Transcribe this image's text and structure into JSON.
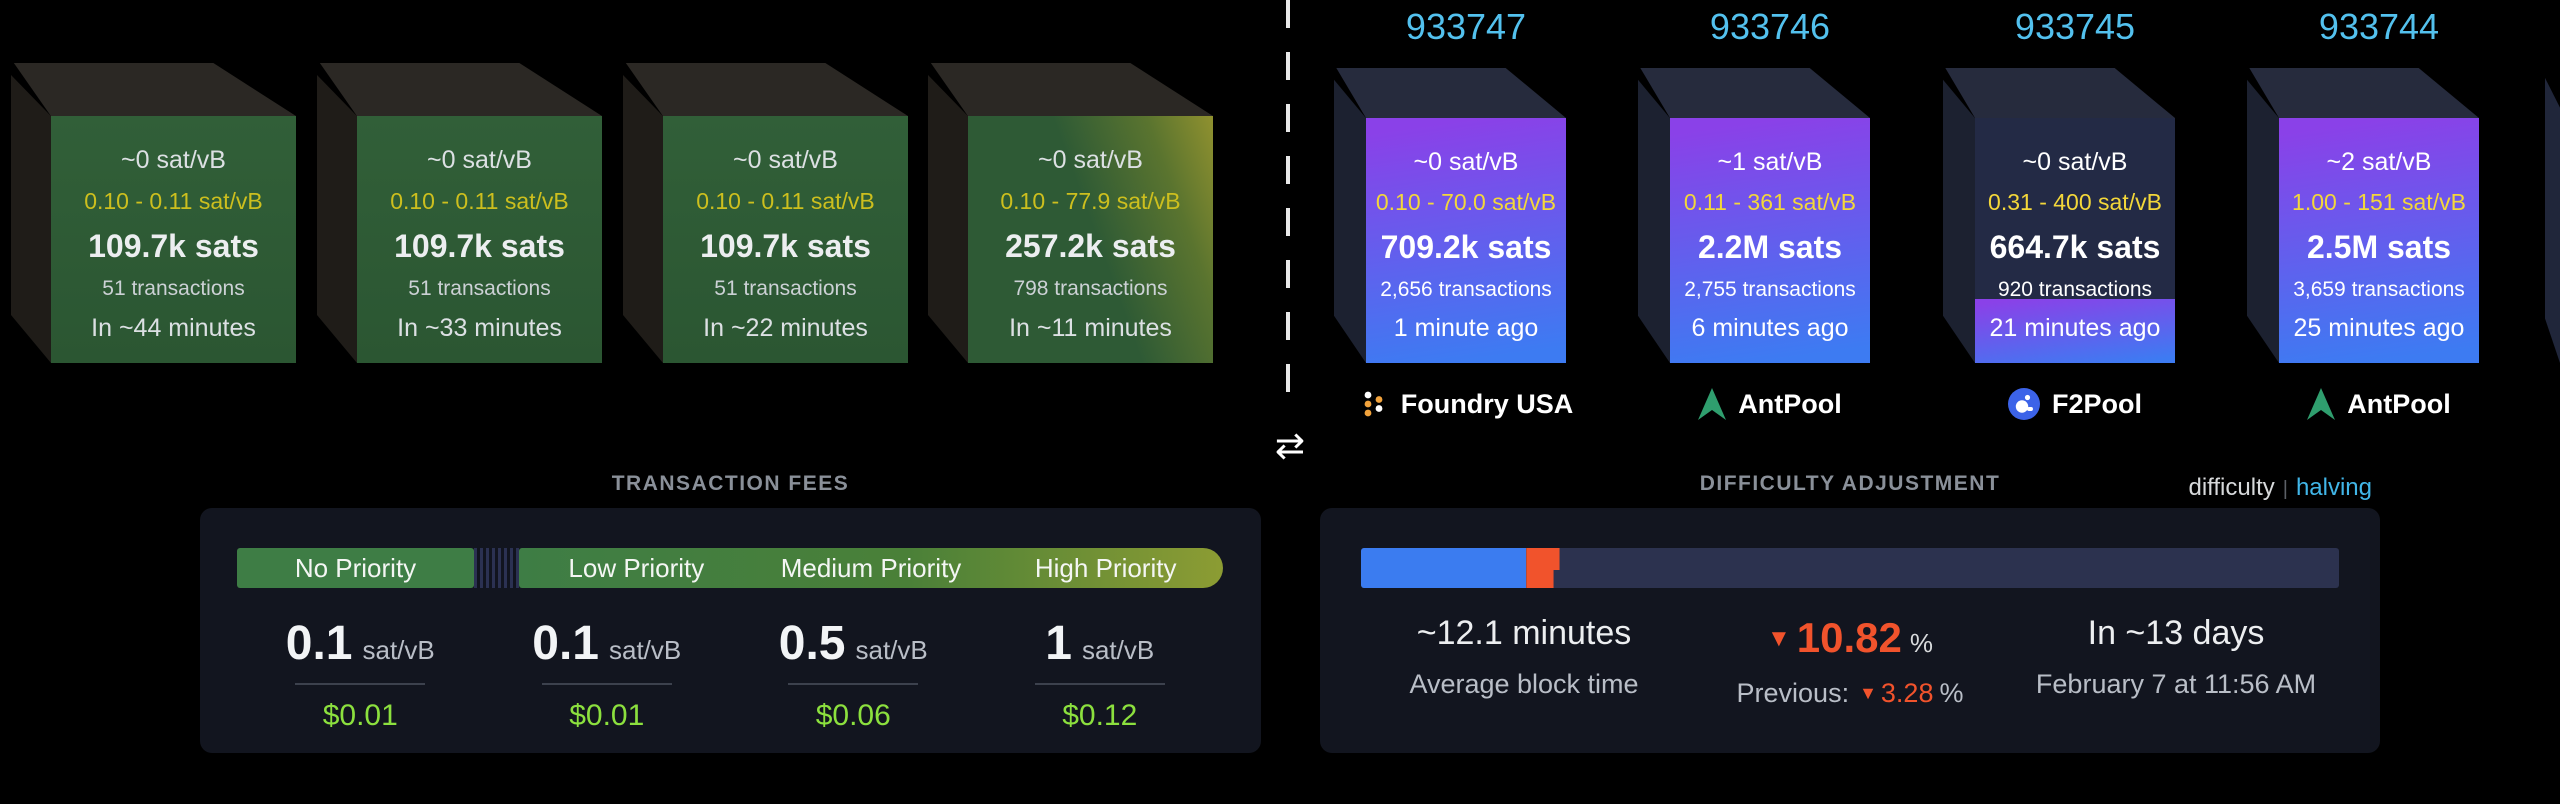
{
  "mempool_side": {
    "blocks": [
      {
        "median_fee": "~0 sat/vB",
        "fee_range": "0.10 - 0.11 sat/vB",
        "total_fees": "109.7k sats",
        "transactions": "51 transactions",
        "eta": "In ~44 minutes"
      },
      {
        "median_fee": "~0 sat/vB",
        "fee_range": "0.10 - 0.11 sat/vB",
        "total_fees": "109.7k sats",
        "transactions": "51 transactions",
        "eta": "In ~33 minutes"
      },
      {
        "median_fee": "~0 sat/vB",
        "fee_range": "0.10 - 0.11 sat/vB",
        "total_fees": "109.7k sats",
        "transactions": "51 transactions",
        "eta": "In ~22 minutes"
      },
      {
        "median_fee": "~0 sat/vB",
        "fee_range": "0.10 - 77.9 sat/vB",
        "total_fees": "257.2k sats",
        "transactions": "798 transactions",
        "eta": "In ~11 minutes"
      }
    ]
  },
  "blockchain_side": {
    "blocks": [
      {
        "height": "933747",
        "median_fee": "~0 sat/vB",
        "fee_range": "0.10 - 70.0 sat/vB",
        "total_fees": "709.2k sats",
        "transactions": "2,656 transactions",
        "age": "1 minute ago",
        "pool": "Foundry USA",
        "pool_icon": "foundry-icon",
        "fill_percent": 100
      },
      {
        "height": "933746",
        "median_fee": "~1 sat/vB",
        "fee_range": "0.11 - 361 sat/vB",
        "total_fees": "2.2M sats",
        "transactions": "2,755 transactions",
        "age": "6 minutes ago",
        "pool": "AntPool",
        "pool_icon": "antpool-icon",
        "fill_percent": 100
      },
      {
        "height": "933745",
        "median_fee": "~0 sat/vB",
        "fee_range": "0.31 - 400 sat/vB",
        "total_fees": "664.7k sats",
        "transactions": "920 transactions",
        "age": "21 minutes ago",
        "pool": "F2Pool",
        "pool_icon": "f2pool-icon",
        "fill_percent": 26
      },
      {
        "height": "933744",
        "median_fee": "~2 sat/vB",
        "fee_range": "1.00 - 151 sat/vB",
        "total_fees": "2.5M sats",
        "transactions": "3,659 transactions",
        "age": "25 minutes ago",
        "pool": "AntPool",
        "pool_icon": "antpool-icon",
        "fill_percent": 100
      }
    ]
  },
  "divider": {
    "swap_icon": "⇄"
  },
  "fees_panel": {
    "title": "TRANSACTION FEES",
    "tiers": [
      {
        "label": "No Priority",
        "rate": "0.1",
        "unit": "sat/vB",
        "usd": "$0.01"
      },
      {
        "label": "Low Priority",
        "rate": "0.1",
        "unit": "sat/vB",
        "usd": "$0.01"
      },
      {
        "label": "Medium Priority",
        "rate": "0.5",
        "unit": "sat/vB",
        "usd": "$0.06"
      },
      {
        "label": "High Priority",
        "rate": "1",
        "unit": "sat/vB",
        "usd": "$0.12"
      }
    ]
  },
  "difficulty_panel": {
    "title": "DIFFICULTY ADJUSTMENT",
    "links": {
      "difficulty": "difficulty",
      "separator": "|",
      "halving": "halving"
    },
    "progress": {
      "blue_percent": 16.9,
      "orange_percent": 3.4
    },
    "average_block_time": {
      "value": "~12.1 minutes",
      "label": "Average block time"
    },
    "change": {
      "arrow": "▼",
      "value": "10.82",
      "suffix": "%",
      "previous_label": "Previous:",
      "previous_arrow": "▼",
      "previous_value": "3.28",
      "previous_suffix": "%"
    },
    "retarget": {
      "value": "In ~13 days",
      "label": "February 7 at 11:56 AM"
    }
  },
  "colors": {
    "height_cyan": "#53c1ee",
    "projected_green": "#2e5a35",
    "projected_olive": "#90912f",
    "mined_purple": "#8a41e8",
    "mined_blue": "#3d7bf2",
    "mined_empty": "#232a45",
    "fee_yellow_left": "#cdbf1e",
    "fee_yellow_right": "#f3d73a",
    "usd_green": "#8ce03e",
    "bar_green": "#3e7d45",
    "bar_olive": "#8c9c33",
    "difficulty_blue": "#3b7cf0",
    "difficulty_orange": "#f1532c",
    "track_navy": "#2c324f",
    "card_bg": "#12151f",
    "title_gray": "#8a9099",
    "halving_cyan": "#41b6e8"
  }
}
